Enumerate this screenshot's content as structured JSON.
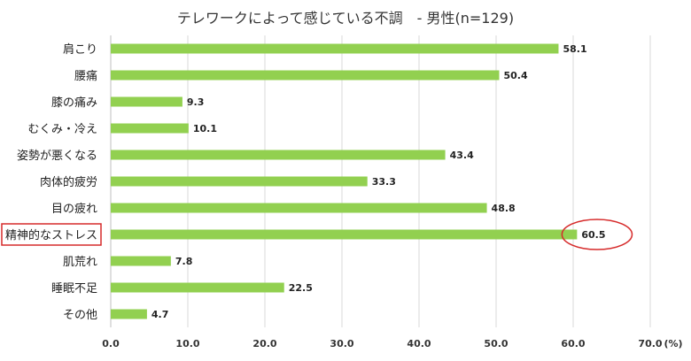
{
  "chart_data": {
    "type": "bar",
    "orientation": "horizontal",
    "title": "テレワークによって感じている不調　-  男性(n=129)",
    "categories": [
      "肩こり",
      "腰痛",
      "膝の痛み",
      "むくみ・冷え",
      "姿勢が悪くなる",
      "肉体的疲労",
      "目の疲れ",
      "精神的なストレス",
      "肌荒れ",
      "睡眠不足",
      "その他"
    ],
    "values": [
      58.1,
      50.4,
      9.3,
      10.1,
      43.4,
      33.3,
      48.8,
      60.5,
      7.8,
      22.5,
      4.7
    ],
    "value_labels": [
      "58.1",
      "50.4",
      "9.3",
      "10.1",
      "43.4",
      "33.3",
      "48.8",
      "60.5",
      "7.8",
      "22.5",
      "4.7"
    ],
    "x_ticks": [
      0,
      10,
      20,
      30,
      40,
      50,
      60,
      70
    ],
    "x_tick_labels": [
      "0.0",
      "10.0",
      "20.0",
      "30.0",
      "40.0",
      "50.0",
      "60.0",
      "70.0"
    ],
    "x_unit": "(%)",
    "xlim": [
      0,
      70
    ],
    "grid": true,
    "highlight_index": 7,
    "colors": {
      "bar": "#92d050",
      "grid": "#d9d9d9",
      "highlight": "#d62a2a"
    }
  }
}
